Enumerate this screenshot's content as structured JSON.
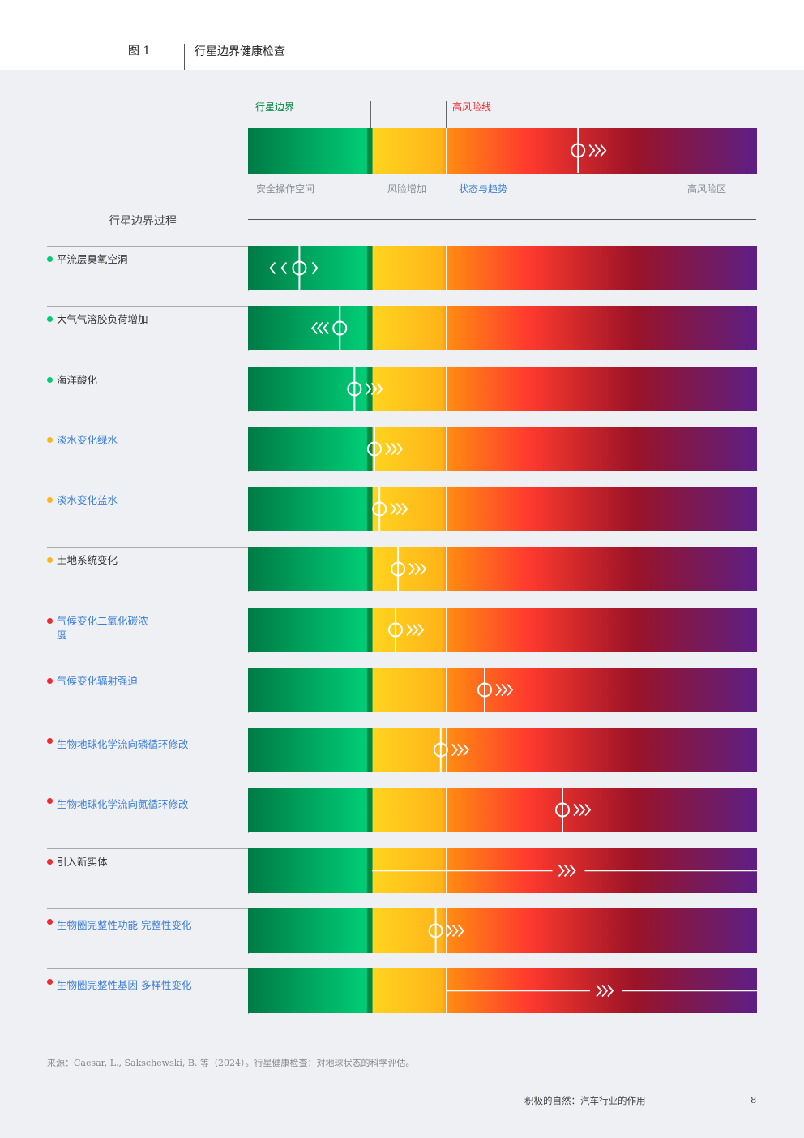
{
  "header": {
    "figure_label": "图 1",
    "title": "行星边界健康检查"
  },
  "legend": {
    "boundary_label": "行星边界",
    "high_risk_line_label": "高风险线",
    "zones": [
      "安全操作空间",
      "风险增加",
      "状态与趋势",
      "高风险区"
    ]
  },
  "processes_heading": "行星边界过程",
  "colors": {
    "safe": "#00cc76",
    "increasing": "#ffb41a",
    "high": "#ee2a33",
    "purple": "#5e1f86",
    "link": "#3d7fd6"
  },
  "chart_data": {
    "type": "table",
    "scale": "status position relative to boundary (0 = safe origin, 1 = planetary boundary, 2.5 = high-risk line, ~6.5 = far end)",
    "legend_example": {
      "position": 4.2,
      "trend": "worsening"
    },
    "rows": [
      {
        "name": "平流层臭氧空洞",
        "status": "safe",
        "position": 0.42,
        "trend": "stable"
      },
      {
        "name": "大气气溶胶负荷增加",
        "status": "safe",
        "position": 0.75,
        "trend": "improving"
      },
      {
        "name": "海洋酸化",
        "status": "safe",
        "position": 0.87,
        "trend": "worsening"
      },
      {
        "name": "淡水变化绿水",
        "status": "increasing",
        "position": 1.08,
        "trend": "worsening"
      },
      {
        "name": "淡水变化蓝水",
        "status": "increasing",
        "position": 1.18,
        "trend": "worsening"
      },
      {
        "name": "土地系统变化",
        "status": "increasing",
        "position": 1.55,
        "trend": "worsening"
      },
      {
        "name": "气候变化二氧化碳浓度",
        "status": "high",
        "position": 1.5,
        "trend": "worsening"
      },
      {
        "name": "气候变化辐射强迫",
        "status": "high",
        "position": 3.0,
        "trend": "worsening"
      },
      {
        "name": "生物地球化学流向磷循环修改",
        "status": "high",
        "position": 2.4,
        "trend": "worsening"
      },
      {
        "name": "生物地球化学流向氮循环修改",
        "status": "high",
        "position": 4.0,
        "trend": "worsening"
      },
      {
        "name": "引入新实体",
        "status": "high",
        "position": null,
        "range": [
          1.0,
          6.5
        ],
        "trend": "worsening"
      },
      {
        "name": "生物圈完整性功能 完整性变化",
        "status": "high",
        "position": 2.3,
        "trend": "worsening"
      },
      {
        "name": "生物圈完整性基因 多样性变化",
        "status": "high",
        "position": null,
        "range": [
          2.5,
          6.5
        ],
        "trend": "worsening"
      }
    ]
  },
  "source": "来源：Caesar, L., Sakschewski, B. 等（2024）。行星健康检查：对地球状态的科学评估。",
  "footer": {
    "title": "积极的自然：汽车行业的作用",
    "page": "8"
  }
}
